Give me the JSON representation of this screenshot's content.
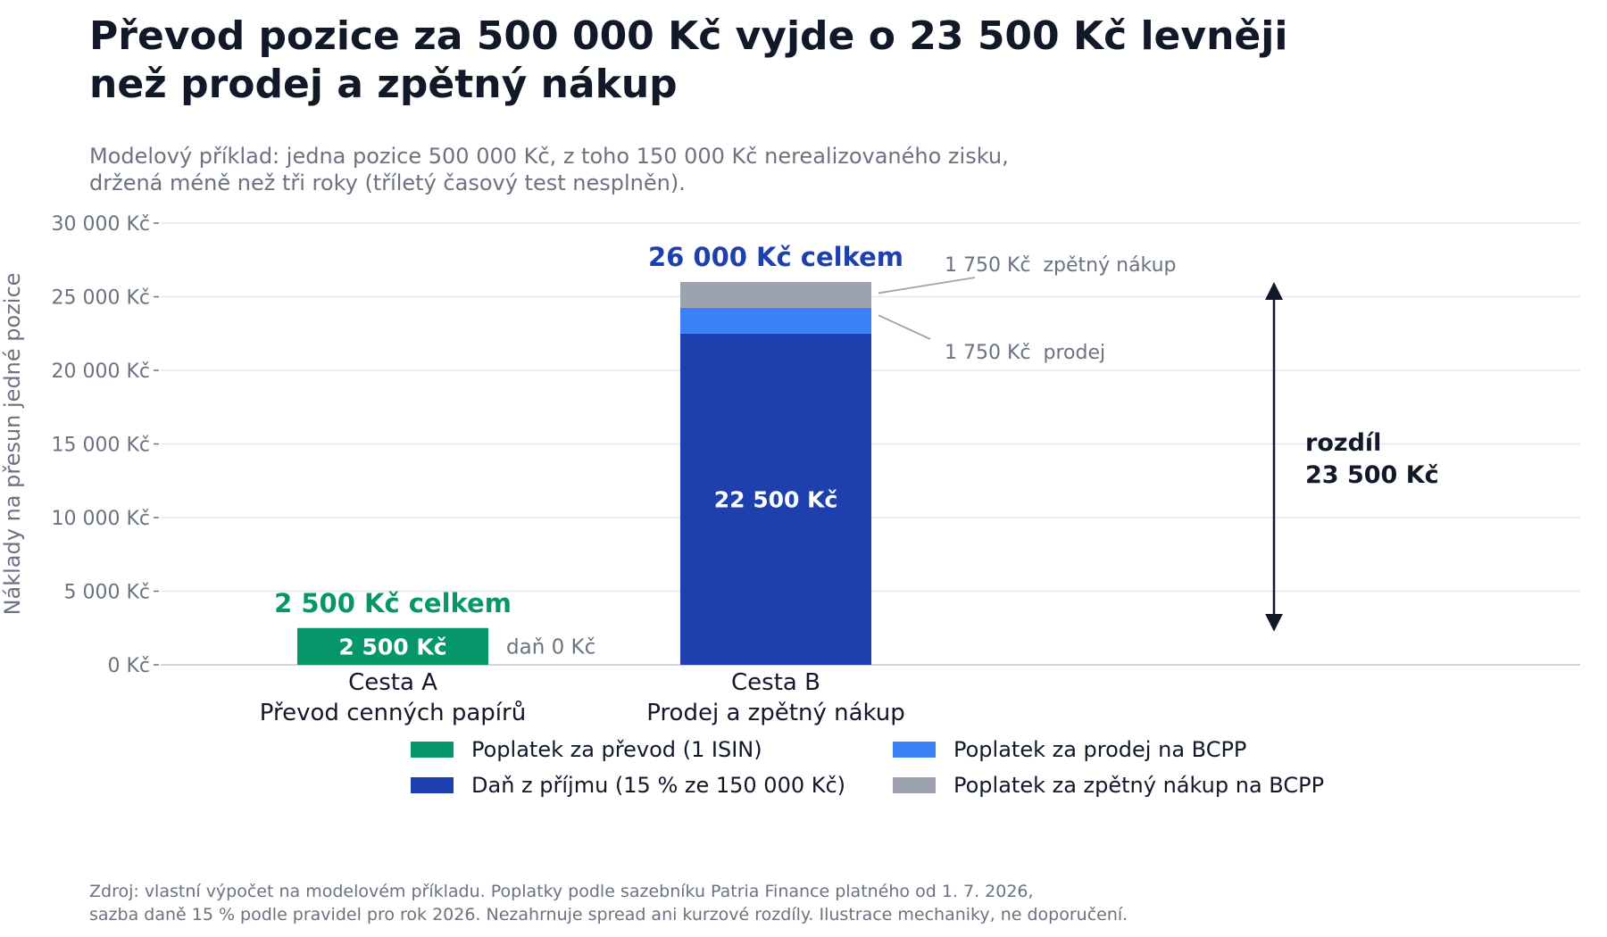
{
  "title_lines": [
    "Převod pozice za 500 000 Kč vyjde o 23 500 Kč levněji",
    "než prodej a zpětný nákup"
  ],
  "subtitle_lines": [
    "Modelový příklad: jedna pozice 500 000 Kč, z toho 150 000 Kč nerealizovaného zisku,",
    "držená méně než tři roky (tříletý časový test nesplněn)."
  ],
  "footer_lines": [
    "Zdroj: vlastní výpočet na modelovém příkladu. Poplatky podle sazebníku Patria Finance platného od 1. 7. 2026,",
    "sazba daně 15 % podle pravidel pro rok 2026. Nezahrnuje spread ani kurzové rozdíly. Ilustrace mechaniky, ne doporučení."
  ],
  "chart_data": {
    "type": "bar",
    "stacked": true,
    "ylabel": "Náklady na přesun jedné pozice",
    "ylim": [
      0,
      30000
    ],
    "yticks": [
      0,
      5000,
      10000,
      15000,
      20000,
      25000,
      30000
    ],
    "ytick_labels": [
      "0 Kč",
      "5 000 Kč",
      "10 000 Kč",
      "15 000 Kč",
      "20 000 Kč",
      "25 000 Kč",
      "30 000 Kč"
    ],
    "grid": true,
    "legend_position": "bottom",
    "categories": [
      {
        "line1": "Cesta A",
        "line2": "Převod cenných papírů"
      },
      {
        "line1": "Cesta B",
        "line2": "Prodej a zpětný nákup"
      }
    ],
    "series": [
      {
        "name": "Poplatek za převod (1 ISIN)",
        "color": "#059669",
        "values": [
          2500,
          0
        ]
      },
      {
        "name": "Daň z příjmu (15 % ze 150 000 Kč)",
        "color": "#1e40af",
        "values": [
          0,
          22500
        ]
      },
      {
        "name": "Poplatek za prodej na BCPP",
        "color": "#3b82f6",
        "values": [
          0,
          1750
        ]
      },
      {
        "name": "Poplatek za zpětný nákup na BCPP",
        "color": "#9ca3af",
        "values": [
          0,
          1750
        ]
      }
    ],
    "legend_order": [
      0,
      2,
      1,
      3
    ],
    "totals": [
      {
        "label": "2 500 Kč celkem",
        "value": 2500,
        "color": "#059669"
      },
      {
        "label": "26 000 Kč celkem",
        "value": 26000,
        "color": "#1e40af"
      }
    ],
    "segment_labels": [
      {
        "category": 0,
        "series": 0,
        "text": "2 500 Kč"
      },
      {
        "category": 1,
        "series": 1,
        "text": "22 500 Kč"
      }
    ],
    "annotations": {
      "tax_zero": "daň 0 Kč",
      "rebuy": {
        "amount": "1 750 Kč",
        "label": "zpětný nákup"
      },
      "sell": {
        "amount": "1 750 Kč",
        "label": "prodej"
      },
      "difference": {
        "line1": "rozdíl",
        "line2": "23 500 Kč",
        "from": 2500,
        "to": 26000
      }
    }
  }
}
